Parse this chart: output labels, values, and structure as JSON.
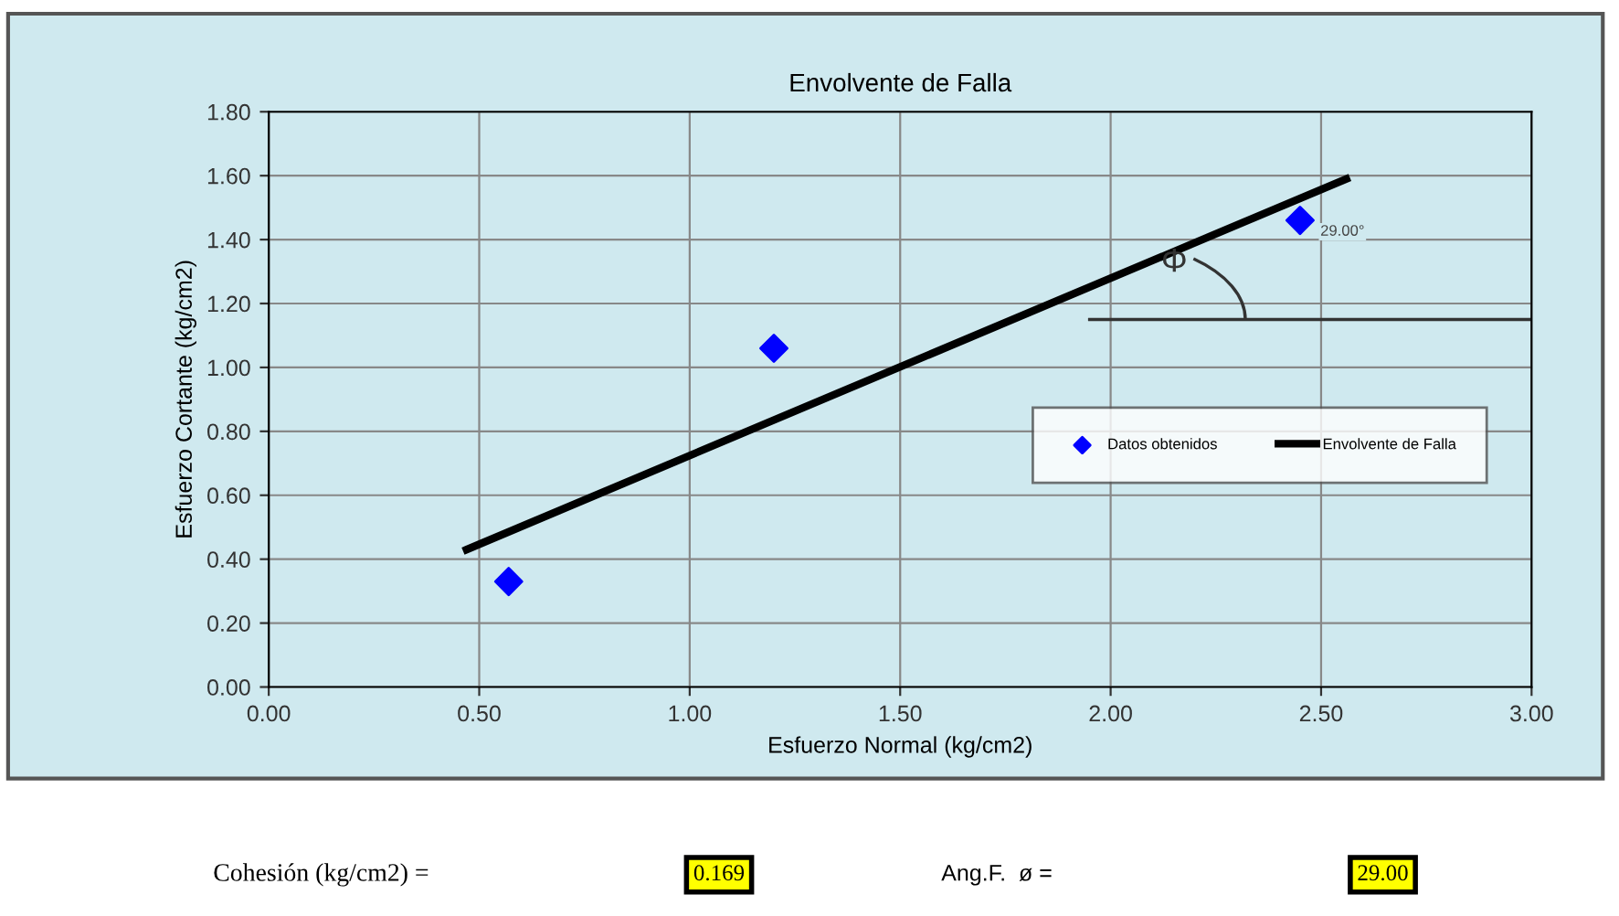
{
  "chart_data": {
    "type": "scatter",
    "title": "Envolvente de Falla",
    "xlabel": "Esfuerzo Normal (kg/cm2)",
    "ylabel": "Esfuerzo Cortante (kg/cm2)",
    "series": [
      {
        "name": "Datos obtenidos",
        "color": "#0000ff",
        "marker": "diamond",
        "x": [
          0.57,
          1.2,
          2.45
        ],
        "values": [
          0.33,
          1.06,
          1.46
        ]
      },
      {
        "name": "Envolvente de Falla",
        "type": "line",
        "color": "#000000",
        "marker": "none",
        "line_style": "solid",
        "x": [
          0.47,
          2.56
        ],
        "values": [
          0.43,
          1.59
        ]
      }
    ],
    "xlim": [
      0,
      3
    ],
    "xticks": [
      {
        "value": 0,
        "label": "0.00"
      },
      {
        "value": 0.5,
        "label": "0.50"
      },
      {
        "value": 1,
        "label": "1.00"
      },
      {
        "value": 1.5,
        "label": "1.50"
      },
      {
        "value": 2,
        "label": "2.00"
      },
      {
        "value": 2.5,
        "label": "2.50"
      },
      {
        "value": 3,
        "label": "3.00"
      }
    ],
    "ylim": [
      0,
      1.8
    ],
    "yticks": [
      {
        "value": 0,
        "label": "0.00"
      },
      {
        "value": 0.2,
        "label": "0.20"
      },
      {
        "value": 0.4,
        "label": "0.40"
      },
      {
        "value": 0.6,
        "label": "0.60"
      },
      {
        "value": 0.8,
        "label": "0.80"
      },
      {
        "value": 1,
        "label": "1.00"
      },
      {
        "value": 1.2,
        "label": "1.20"
      },
      {
        "value": 1.4,
        "label": "1.40"
      },
      {
        "value": 1.6,
        "label": "1.60"
      },
      {
        "value": 1.8,
        "label": "1.80"
      }
    ],
    "grid": true,
    "legend": "right",
    "annotations": [
      {
        "text": "29.00°",
        "x": 2.45,
        "y": 1.46
      },
      "Φ",
      "Cohesión (kg/cm2) =",
      "0.169",
      "Ang.F.  ø =",
      "29.00"
    ]
  }
}
